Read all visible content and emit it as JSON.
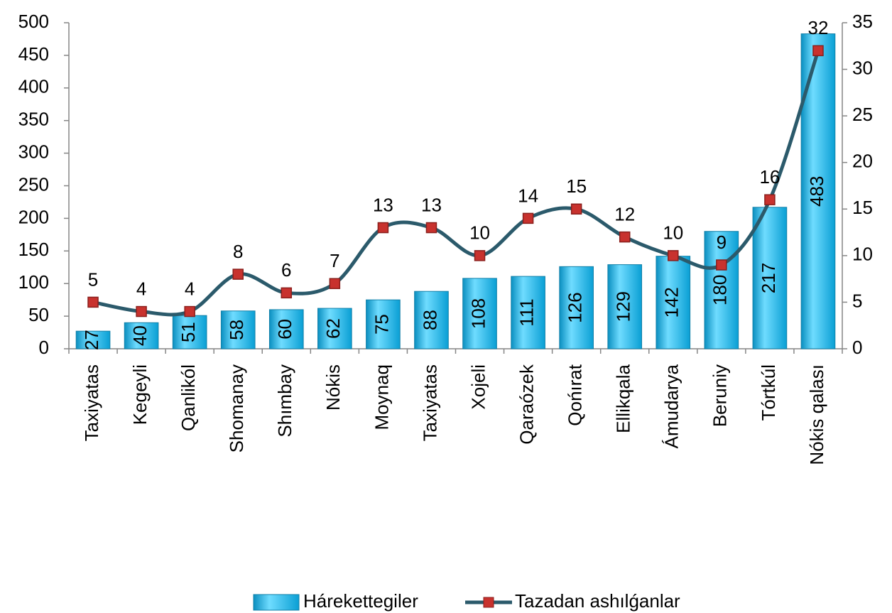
{
  "chart_data": {
    "type": "bar",
    "categories": [
      "Taxiyatas",
      "Kegeyli",
      "Qanlikól",
      "Shomanay",
      "Shımbay",
      "Nókis",
      "Moynaq",
      "Taxiyatas",
      "Xojeli",
      "Qaraózek",
      "Qońırat",
      "Ellikqala",
      "Ámudarya",
      "Beruniy",
      "Tórtkúl",
      "Nókis qalası"
    ],
    "series": [
      {
        "name": "Hárekettegiler",
        "type": "bar",
        "color": "#1fb8e8",
        "values": [
          27,
          40,
          51,
          58,
          60,
          62,
          75,
          88,
          108,
          111,
          126,
          129,
          142,
          180,
          217,
          483
        ]
      },
      {
        "name": "Tazadan ashılǵanlar",
        "type": "line",
        "axis": "y2",
        "color": "#2b5a6b",
        "marker_color": "#c8322e",
        "values": [
          5,
          4,
          4,
          8,
          6,
          7,
          13,
          13,
          10,
          14,
          15,
          12,
          10,
          9,
          16,
          32
        ]
      }
    ],
    "ylim": [
      0,
      500
    ],
    "yticks": [
      0,
      50,
      100,
      150,
      200,
      250,
      300,
      350,
      400,
      450,
      500
    ],
    "y2lim": [
      0,
      35
    ],
    "y2ticks": [
      0,
      5,
      10,
      15,
      20,
      25,
      30,
      35
    ],
    "grid": false,
    "legend": "bottom"
  }
}
